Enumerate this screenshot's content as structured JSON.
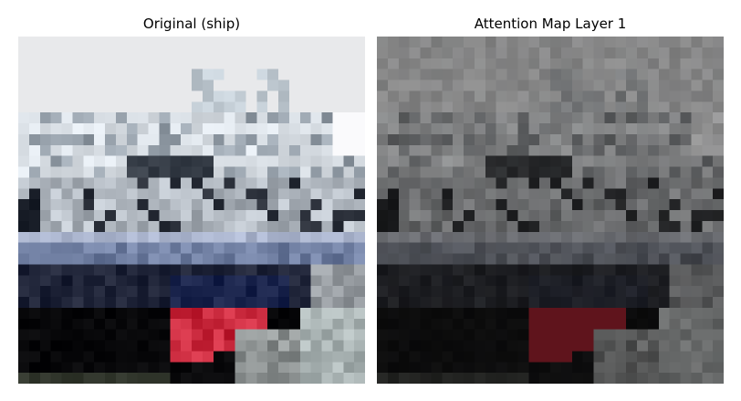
{
  "panels": [
    {
      "title": "Original (ship)",
      "image_description_icon": "ship-photo-pixelated"
    },
    {
      "title": "Attention Map Layer 1",
      "image_description_icon": "attention-map-darkened"
    }
  ]
}
